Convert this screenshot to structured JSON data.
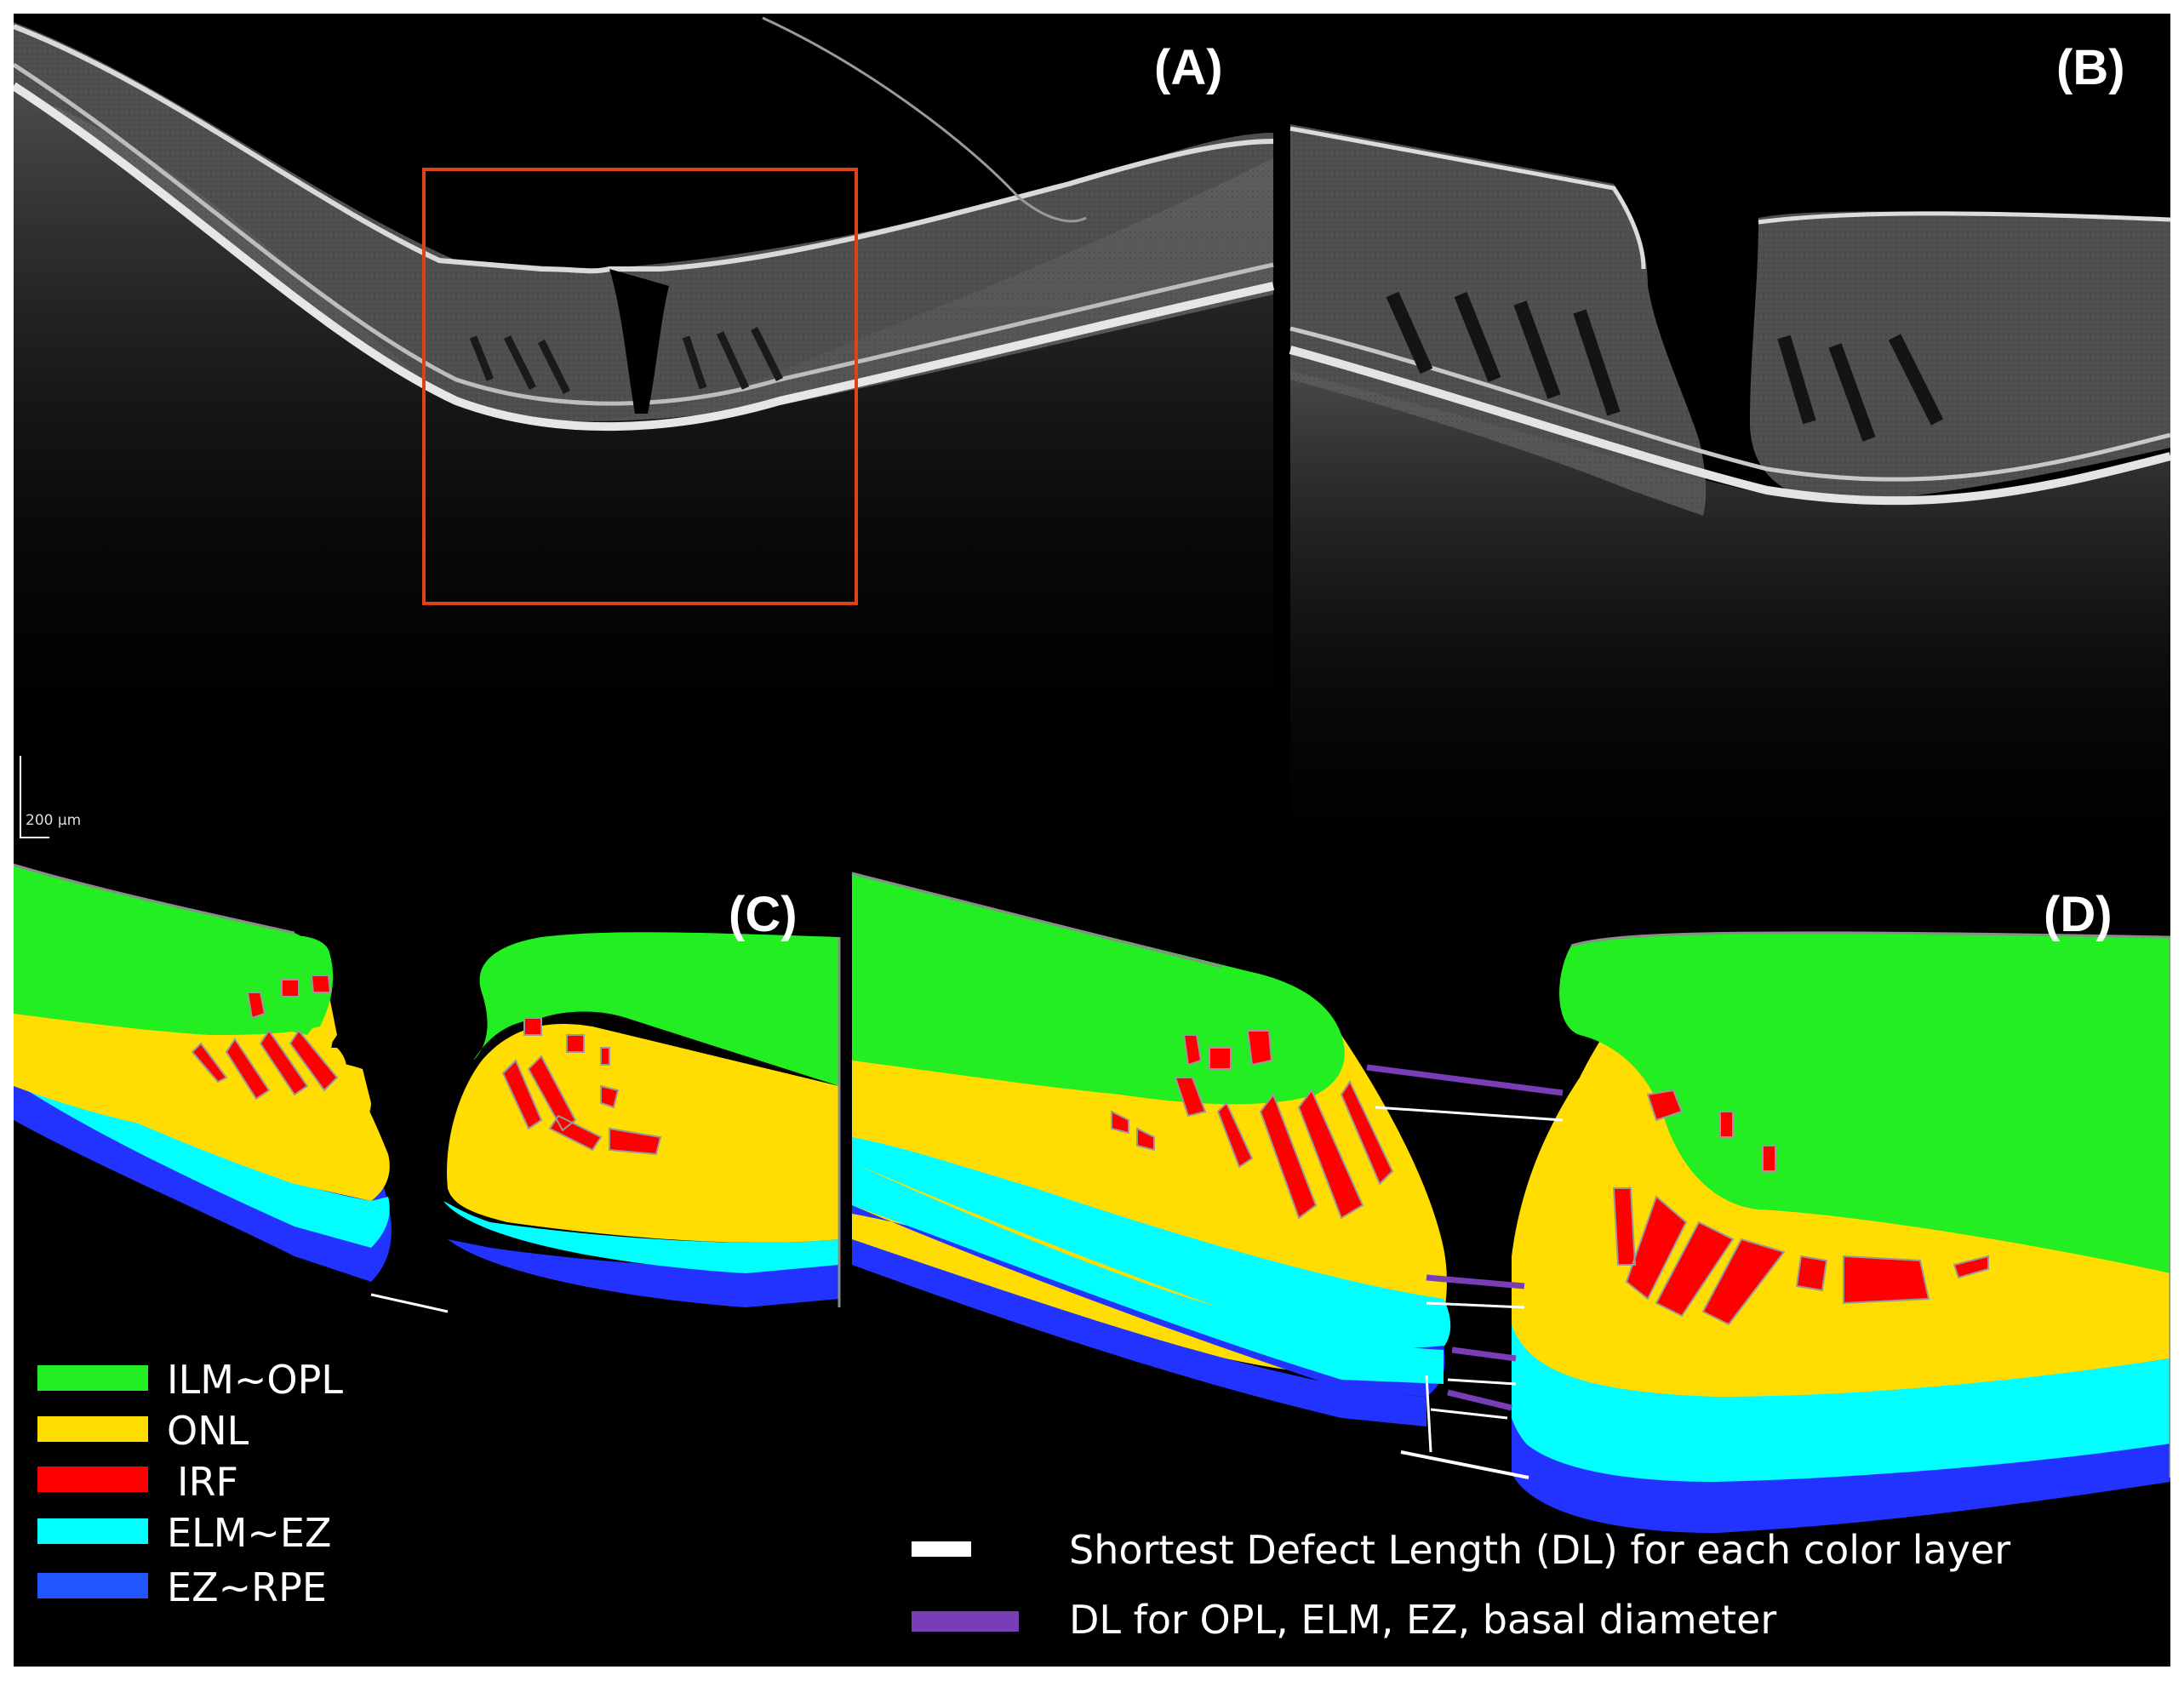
{
  "panels": {
    "a": "(A)",
    "b": "(B)",
    "c": "(C)",
    "d": "(D)"
  },
  "scale_bar": "200 μm",
  "layers": [
    {
      "label": "ILM~OPL",
      "color": "#22ee22"
    },
    {
      "label": "ONL",
      "color": "#ffdd00"
    },
    {
      "label": "IRF",
      "color": "#ff0000"
    },
    {
      "label": "ELM~EZ",
      "color": "#00ffff"
    },
    {
      "label": "EZ~RPE",
      "color": "#2244ff"
    }
  ],
  "line_legend": [
    {
      "label": "Shortest Defect Length (DL) for each color layer",
      "color": "#ffffff"
    },
    {
      "label": "DL for OPL, ELM, EZ, basal diameter",
      "color": "#7a3db8"
    }
  ],
  "colors": {
    "background": "#000000",
    "roi_box": "#e0401a",
    "border": "#8c8c8c"
  }
}
